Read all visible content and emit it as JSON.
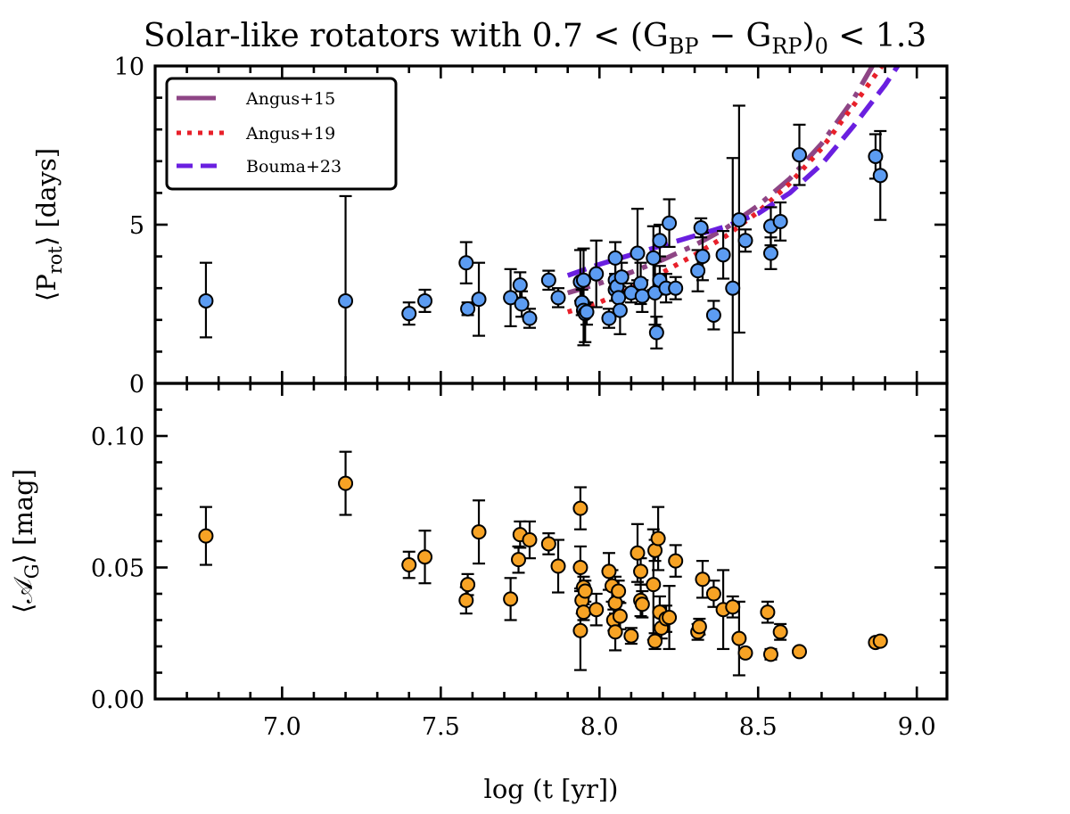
{
  "chart_data": [
    {
      "panel": "top",
      "type": "scatter",
      "title": "Solar-like rotators with 0.7 < (G_BP − G_RP)_0 < 1.3",
      "xlabel": "log (t [yr])",
      "ylabel": "⟨P_rot⟩ [days]",
      "xlim": [
        6.6,
        9.095
      ],
      "ylim": [
        0,
        10
      ],
      "xticks": [
        7.0,
        7.5,
        8.0,
        8.5,
        9.0
      ],
      "xtick_labels": [
        "7.0",
        "7.5",
        "8.0",
        "8.5",
        "9.0"
      ],
      "yticks": [
        0,
        5,
        10
      ],
      "ytick_labels": [
        "0",
        "5",
        "10"
      ],
      "grid": false,
      "legend": {
        "placement": "top-left",
        "entries": [
          {
            "label": "Angus+15",
            "color": "#8e4585",
            "style": "dash-dot"
          },
          {
            "label": "Angus+19",
            "color": "#e8202a",
            "style": "dotted"
          },
          {
            "label": "Bouma+23",
            "color": "#6a1fe0",
            "style": "dashed"
          }
        ]
      },
      "marker_color": "#5c9cf2",
      "series": [
        {
          "name": "data",
          "points": [
            {
              "x": 6.76,
              "y": 2.6,
              "lo": 1.15,
              "hi": 1.2
            },
            {
              "x": 7.2,
              "y": 2.6,
              "lo": 2.6,
              "hi": 3.3
            },
            {
              "x": 7.4,
              "y": 2.2,
              "lo": 0.35,
              "hi": 0.35
            },
            {
              "x": 7.45,
              "y": 2.6,
              "lo": 0.35,
              "hi": 0.35
            },
            {
              "x": 7.58,
              "y": 3.8,
              "lo": 0.65,
              "hi": 0.65
            },
            {
              "x": 7.585,
              "y": 2.35,
              "lo": 0.2,
              "hi": 0.2
            },
            {
              "x": 7.62,
              "y": 2.65,
              "lo": 1.15,
              "hi": 1.15
            },
            {
              "x": 7.72,
              "y": 2.7,
              "lo": 0.9,
              "hi": 0.9
            },
            {
              "x": 7.75,
              "y": 3.1,
              "lo": 0.4,
              "hi": 0.4
            },
            {
              "x": 7.755,
              "y": 2.5,
              "lo": 0.4,
              "hi": 0.4
            },
            {
              "x": 7.78,
              "y": 2.05,
              "lo": 0.3,
              "hi": 0.3
            },
            {
              "x": 7.84,
              "y": 3.25,
              "lo": 0.3,
              "hi": 0.3
            },
            {
              "x": 7.87,
              "y": 2.7,
              "lo": 0.3,
              "hi": 0.3
            },
            {
              "x": 7.94,
              "y": 3.2,
              "lo": 0.6,
              "hi": 1.0
            },
            {
              "x": 7.95,
              "y": 3.25,
              "lo": 1.0,
              "hi": 1.0
            },
            {
              "x": 7.945,
              "y": 2.55,
              "lo": 0.4,
              "hi": 0.4
            },
            {
              "x": 7.95,
              "y": 2.3,
              "lo": 1.1,
              "hi": 0.3
            },
            {
              "x": 7.955,
              "y": 2.2,
              "lo": 0.9,
              "hi": 0.3
            },
            {
              "x": 7.96,
              "y": 2.25,
              "lo": 0.4,
              "hi": 0.3
            },
            {
              "x": 7.99,
              "y": 3.45,
              "lo": 1.05,
              "hi": 1.05
            },
            {
              "x": 8.03,
              "y": 2.05,
              "lo": 0.3,
              "hi": 0.3
            },
            {
              "x": 8.05,
              "y": 3.95,
              "lo": 0.5,
              "hi": 0.5
            },
            {
              "x": 8.05,
              "y": 3.25,
              "lo": 0.35,
              "hi": 0.6
            },
            {
              "x": 8.05,
              "y": 2.95,
              "lo": 0.35,
              "hi": 0.35
            },
            {
              "x": 8.055,
              "y": 3.05,
              "lo": 0.4,
              "hi": 0.4
            },
            {
              "x": 8.06,
              "y": 2.7,
              "lo": 0.4,
              "hi": 0.4
            },
            {
              "x": 8.065,
              "y": 2.3,
              "lo": 0.75,
              "hi": 0.75
            },
            {
              "x": 8.07,
              "y": 3.35,
              "lo": 0.45,
              "hi": 0.45
            },
            {
              "x": 8.1,
              "y": 2.85,
              "lo": 0.3,
              "hi": 0.3
            },
            {
              "x": 8.12,
              "y": 4.1,
              "lo": 0.85,
              "hi": 1.4
            },
            {
              "x": 8.13,
              "y": 3.15,
              "lo": 0.65,
              "hi": 0.65
            },
            {
              "x": 8.135,
              "y": 2.75,
              "lo": 0.5,
              "hi": 0.5
            },
            {
              "x": 8.17,
              "y": 3.95,
              "lo": 1.0,
              "hi": 1.0
            },
            {
              "x": 8.175,
              "y": 2.85,
              "lo": 1.0,
              "hi": 1.0
            },
            {
              "x": 8.18,
              "y": 1.6,
              "lo": 0.5,
              "hi": 0.5
            },
            {
              "x": 8.19,
              "y": 4.5,
              "lo": 0.5,
              "hi": 0.5
            },
            {
              "x": 8.19,
              "y": 3.25,
              "lo": 0.45,
              "hi": 0.45
            },
            {
              "x": 8.21,
              "y": 3.0,
              "lo": 0.45,
              "hi": 0.45
            },
            {
              "x": 8.22,
              "y": 5.05,
              "lo": 0.75,
              "hi": 0.75
            },
            {
              "x": 8.24,
              "y": 3.0,
              "lo": 0.35,
              "hi": 0.35
            },
            {
              "x": 8.31,
              "y": 3.55,
              "lo": 0.65,
              "hi": 0.65
            },
            {
              "x": 8.32,
              "y": 4.9,
              "lo": 0.3,
              "hi": 0.3
            },
            {
              "x": 8.325,
              "y": 4.0,
              "lo": 0.75,
              "hi": 0.75
            },
            {
              "x": 8.36,
              "y": 2.15,
              "lo": 0.45,
              "hi": 0.45
            },
            {
              "x": 8.39,
              "y": 4.05,
              "lo": 0.75,
              "hi": 0.75
            },
            {
              "x": 8.42,
              "y": 3.0,
              "lo": 3.0,
              "hi": 4.1
            },
            {
              "x": 8.44,
              "y": 5.15,
              "lo": 3.55,
              "hi": 3.6
            },
            {
              "x": 8.46,
              "y": 4.5,
              "lo": 0.35,
              "hi": 0.35
            },
            {
              "x": 8.54,
              "y": 4.1,
              "lo": 0.5,
              "hi": 0.5
            },
            {
              "x": 8.54,
              "y": 4.95,
              "lo": 0.6,
              "hi": 0.6
            },
            {
              "x": 8.57,
              "y": 5.1,
              "lo": 0.6,
              "hi": 0.6
            },
            {
              "x": 8.63,
              "y": 7.2,
              "lo": 0.95,
              "hi": 0.95
            },
            {
              "x": 8.87,
              "y": 7.15,
              "lo": 0.7,
              "hi": 0.7
            },
            {
              "x": 8.885,
              "y": 6.55,
              "lo": 1.4,
              "hi": 1.4
            }
          ]
        }
      ],
      "model_curves": [
        {
          "name": "Angus+15",
          "x": [
            7.9,
            8.0,
            8.1,
            8.2,
            8.3,
            8.4,
            8.5,
            8.6,
            8.7,
            8.8,
            8.86
          ],
          "y": [
            2.85,
            3.15,
            3.5,
            3.9,
            4.35,
            4.9,
            5.6,
            6.45,
            7.55,
            8.95,
            10.0
          ]
        },
        {
          "name": "Angus+19",
          "x": [
            7.9,
            8.0,
            8.1,
            8.2,
            8.3,
            8.4,
            8.5,
            8.6,
            8.7,
            8.8,
            8.89
          ],
          "y": [
            2.25,
            2.55,
            3.0,
            3.5,
            4.05,
            4.65,
            5.4,
            6.3,
            7.4,
            8.75,
            10.0
          ]
        },
        {
          "name": "Bouma+23",
          "x": [
            7.9,
            8.0,
            8.1,
            8.2,
            8.3,
            8.4,
            8.5,
            8.6,
            8.7,
            8.8,
            8.9,
            8.94
          ],
          "y": [
            3.4,
            3.75,
            4.05,
            4.35,
            4.65,
            4.95,
            5.35,
            6.0,
            6.9,
            8.1,
            9.4,
            10.0
          ]
        }
      ]
    },
    {
      "panel": "bottom",
      "type": "scatter",
      "xlabel": "log (t [yr])",
      "ylabel": "⟨A_G⟩ [mag]",
      "xlim": [
        6.6,
        9.095
      ],
      "ylim": [
        0,
        0.12
      ],
      "xticks": [
        7.0,
        7.5,
        8.0,
        8.5,
        9.0
      ],
      "xtick_labels": [
        "7.0",
        "7.5",
        "8.0",
        "8.5",
        "9.0"
      ],
      "yticks": [
        0.0,
        0.05,
        0.1
      ],
      "ytick_labels": [
        "0.00",
        "0.05",
        "0.10"
      ],
      "grid": false,
      "marker_color": "#f7a325",
      "series": [
        {
          "name": "data",
          "points": [
            {
              "x": 6.76,
              "y": 0.062,
              "lo": 0.011,
              "hi": 0.011
            },
            {
              "x": 7.2,
              "y": 0.082,
              "lo": 0.012,
              "hi": 0.012
            },
            {
              "x": 7.4,
              "y": 0.051,
              "lo": 0.005,
              "hi": 0.005
            },
            {
              "x": 7.45,
              "y": 0.054,
              "lo": 0.01,
              "hi": 0.01
            },
            {
              "x": 7.58,
              "y": 0.0375,
              "lo": 0.005,
              "hi": 0.005
            },
            {
              "x": 7.585,
              "y": 0.0435,
              "lo": 0.004,
              "hi": 0.004
            },
            {
              "x": 7.62,
              "y": 0.0635,
              "lo": 0.012,
              "hi": 0.012
            },
            {
              "x": 7.72,
              "y": 0.038,
              "lo": 0.008,
              "hi": 0.008
            },
            {
              "x": 7.75,
              "y": 0.0625,
              "lo": 0.005,
              "hi": 0.005
            },
            {
              "x": 7.745,
              "y": 0.053,
              "lo": 0.005,
              "hi": 0.005
            },
            {
              "x": 7.78,
              "y": 0.0605,
              "lo": 0.007,
              "hi": 0.007
            },
            {
              "x": 7.84,
              "y": 0.059,
              "lo": 0.004,
              "hi": 0.004
            },
            {
              "x": 7.87,
              "y": 0.0505,
              "lo": 0.01,
              "hi": 0.01
            },
            {
              "x": 7.94,
              "y": 0.0725,
              "lo": 0.008,
              "hi": 0.008
            },
            {
              "x": 7.94,
              "y": 0.05,
              "lo": 0.008,
              "hi": 0.008
            },
            {
              "x": 7.95,
              "y": 0.0425,
              "lo": 0.004,
              "hi": 0.004
            },
            {
              "x": 7.945,
              "y": 0.0375,
              "lo": 0.005,
              "hi": 0.005
            },
            {
              "x": 7.95,
              "y": 0.033,
              "lo": 0.003,
              "hi": 0.003
            },
            {
              "x": 7.94,
              "y": 0.026,
              "lo": 0.015,
              "hi": 0.015
            },
            {
              "x": 7.955,
              "y": 0.041,
              "lo": 0.004,
              "hi": 0.004
            },
            {
              "x": 7.99,
              "y": 0.034,
              "lo": 0.006,
              "hi": 0.006
            },
            {
              "x": 8.03,
              "y": 0.0485,
              "lo": 0.007,
              "hi": 0.007
            },
            {
              "x": 8.04,
              "y": 0.043,
              "lo": 0.006,
              "hi": 0.006
            },
            {
              "x": 8.05,
              "y": 0.0365,
              "lo": 0.01,
              "hi": 0.01
            },
            {
              "x": 8.045,
              "y": 0.03,
              "lo": 0.004,
              "hi": 0.004
            },
            {
              "x": 8.05,
              "y": 0.0255,
              "lo": 0.007,
              "hi": 0.007
            },
            {
              "x": 8.06,
              "y": 0.041,
              "lo": 0.004,
              "hi": 0.004
            },
            {
              "x": 8.065,
              "y": 0.0315,
              "lo": 0.005,
              "hi": 0.005
            },
            {
              "x": 8.1,
              "y": 0.024,
              "lo": 0.003,
              "hi": 0.003
            },
            {
              "x": 8.12,
              "y": 0.0555,
              "lo": 0.011,
              "hi": 0.011
            },
            {
              "x": 8.13,
              "y": 0.0485,
              "lo": 0.005,
              "hi": 0.005
            },
            {
              "x": 8.13,
              "y": 0.0375,
              "lo": 0.006,
              "hi": 0.006
            },
            {
              "x": 8.135,
              "y": 0.036,
              "lo": 0.005,
              "hi": 0.005
            },
            {
              "x": 8.17,
              "y": 0.0435,
              "lo": 0.021,
              "hi": 0.021
            },
            {
              "x": 8.175,
              "y": 0.0565,
              "lo": 0.004,
              "hi": 0.004
            },
            {
              "x": 8.185,
              "y": 0.061,
              "lo": 0.012,
              "hi": 0.012
            },
            {
              "x": 8.175,
              "y": 0.022,
              "lo": 0.003,
              "hi": 0.003
            },
            {
              "x": 8.19,
              "y": 0.033,
              "lo": 0.006,
              "hi": 0.006
            },
            {
              "x": 8.195,
              "y": 0.027,
              "lo": 0.004,
              "hi": 0.004
            },
            {
              "x": 8.21,
              "y": 0.0305,
              "lo": 0.005,
              "hi": 0.005
            },
            {
              "x": 8.22,
              "y": 0.031,
              "lo": 0.012,
              "hi": 0.012
            },
            {
              "x": 8.24,
              "y": 0.0525,
              "lo": 0.006,
              "hi": 0.006
            },
            {
              "x": 8.31,
              "y": 0.0255,
              "lo": 0.003,
              "hi": 0.003
            },
            {
              "x": 8.315,
              "y": 0.0275,
              "lo": 0.003,
              "hi": 0.003
            },
            {
              "x": 8.325,
              "y": 0.0455,
              "lo": 0.007,
              "hi": 0.007
            },
            {
              "x": 8.36,
              "y": 0.04,
              "lo": 0.005,
              "hi": 0.005
            },
            {
              "x": 8.39,
              "y": 0.034,
              "lo": 0.015,
              "hi": 0.015
            },
            {
              "x": 8.42,
              "y": 0.035,
              "lo": 0.004,
              "hi": 0.004
            },
            {
              "x": 8.44,
              "y": 0.023,
              "lo": 0.014,
              "hi": 0.014
            },
            {
              "x": 8.46,
              "y": 0.0175,
              "lo": 0.0,
              "hi": 0.0
            },
            {
              "x": 8.53,
              "y": 0.033,
              "lo": 0.004,
              "hi": 0.004
            },
            {
              "x": 8.54,
              "y": 0.017,
              "lo": 0.002,
              "hi": 0.002
            },
            {
              "x": 8.57,
              "y": 0.0255,
              "lo": 0.003,
              "hi": 0.003
            },
            {
              "x": 8.63,
              "y": 0.018,
              "lo": 0.0,
              "hi": 0.0
            },
            {
              "x": 8.87,
              "y": 0.0215,
              "lo": 0.001,
              "hi": 0.001
            },
            {
              "x": 8.885,
              "y": 0.022,
              "lo": 0.0,
              "hi": 0.0
            }
          ]
        }
      ]
    }
  ],
  "labels": {
    "title_prefix": "Solar-like rotators with 0.7 < (G",
    "title_sub1": "BP",
    "title_mid": " − G",
    "title_sub2": "RP",
    "title_close": ")",
    "title_sub3": "0",
    "title_suffix": " < 1.3",
    "top_ylabel_open": "⟨P",
    "top_ylabel_sub": "rot",
    "top_ylabel_close": "⟩ [days]",
    "bottom_ylabel_open": "⟨𝒜",
    "bottom_ylabel_sub": "G",
    "bottom_ylabel_close": "⟩ [mag]",
    "xlabel": "log (t [yr])",
    "legend_1": "Angus+15",
    "legend_2": "Angus+19",
    "legend_3": "Bouma+23"
  }
}
